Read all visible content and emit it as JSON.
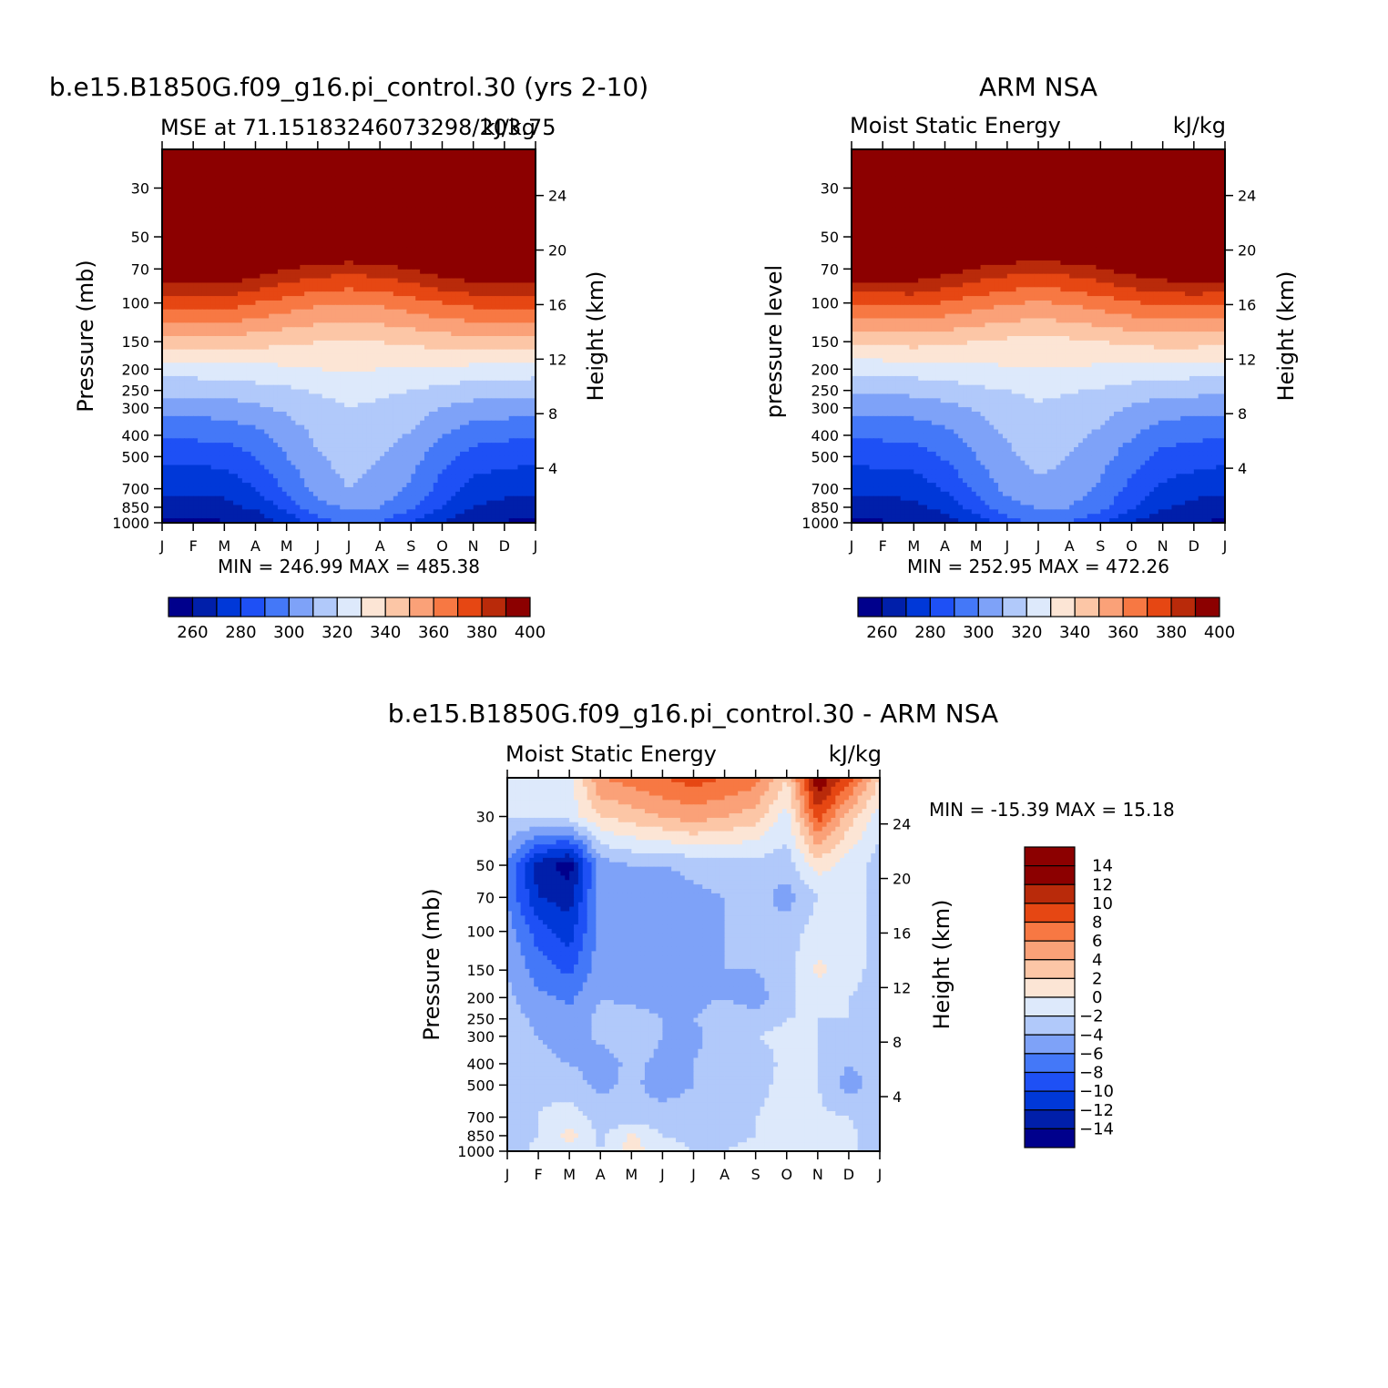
{
  "chart_data": [
    {
      "type": "heatmap",
      "title": "b.e15.B1850G.f09_g16.pi_control.30 (yrs 2-10)",
      "left_subtitle": "MSE at 71.15183246073298/203.75",
      "right_subtitle": "kJ/kg",
      "ylabel": "Pressure (mb)",
      "y2label": "Height (km)",
      "stats": "MIN = 246.99 MAX = 485.38",
      "months": [
        "J",
        "F",
        "M",
        "A",
        "M",
        "J",
        "J",
        "A",
        "S",
        "O",
        "N",
        "D",
        "J"
      ],
      "pressure_ticks": [
        "30",
        "50",
        "70",
        "100",
        "150",
        "200",
        "250",
        "300",
        "400",
        "500",
        "700",
        "850",
        "1000"
      ],
      "height_ticks": [
        "24",
        "20",
        "16",
        "12",
        "8",
        "4"
      ],
      "levels": [
        250,
        260,
        270,
        280,
        290,
        300,
        310,
        320,
        330,
        340,
        350,
        360,
        370,
        380,
        390,
        400
      ],
      "colorbar_labels": [
        "260",
        "280",
        "300",
        "320",
        "340",
        "360",
        "380",
        "400"
      ],
      "vmin": 246.99,
      "vmax": 485.38,
      "field": [
        {
          "p": 1000,
          "v": [
            258,
            258,
            259,
            262,
            272,
            285,
            292,
            290,
            280,
            270,
            262,
            259,
            258
          ]
        },
        {
          "p": 850,
          "v": [
            266,
            266,
            267,
            272,
            284,
            296,
            302,
            300,
            292,
            280,
            270,
            267,
            266
          ]
        },
        {
          "p": 700,
          "v": [
            272,
            272,
            273,
            280,
            292,
            304,
            310,
            306,
            298,
            286,
            276,
            273,
            272
          ]
        },
        {
          "p": 500,
          "v": [
            283,
            283,
            284,
            290,
            300,
            309,
            314,
            310,
            304,
            294,
            286,
            284,
            283
          ]
        },
        {
          "p": 400,
          "v": [
            292,
            292,
            293,
            297,
            304,
            312,
            316,
            314,
            309,
            300,
            294,
            292,
            292
          ]
        },
        {
          "p": 300,
          "v": [
            304,
            304,
            305,
            308,
            312,
            317,
            320,
            318,
            315,
            310,
            306,
            305,
            304
          ]
        },
        {
          "p": 250,
          "v": [
            313,
            313,
            314,
            316,
            318,
            321,
            323,
            322,
            320,
            317,
            315,
            314,
            313
          ]
        },
        {
          "p": 200,
          "v": [
            325,
            325,
            326,
            327,
            328,
            330,
            331,
            330,
            329,
            328,
            327,
            326,
            325
          ]
        },
        {
          "p": 150,
          "v": [
            345,
            345,
            346,
            344,
            342,
            340,
            339,
            340,
            342,
            344,
            346,
            346,
            345
          ]
        },
        {
          "p": 100,
          "v": [
            374,
            374,
            375,
            370,
            366,
            362,
            360,
            362,
            366,
            370,
            373,
            374,
            374
          ]
        },
        {
          "p": 70,
          "v": [
            402,
            402,
            402,
            396,
            390,
            386,
            384,
            386,
            390,
            396,
            400,
            402,
            402
          ]
        },
        {
          "p": 50,
          "v": [
            430,
            430,
            430,
            426,
            420,
            416,
            414,
            416,
            420,
            426,
            430,
            430,
            430
          ]
        },
        {
          "p": 30,
          "v": [
            470,
            470,
            470,
            466,
            460,
            456,
            455,
            456,
            460,
            466,
            470,
            470,
            470
          ]
        },
        {
          "p": 20,
          "v": [
            485,
            485,
            485,
            482,
            478,
            476,
            475,
            476,
            478,
            482,
            485,
            485,
            485
          ]
        }
      ]
    },
    {
      "type": "heatmap",
      "title": "ARM NSA",
      "left_subtitle": "Moist Static Energy",
      "right_subtitle": "kJ/kg",
      "ylabel": "pressure level",
      "y2label": "Height (km)",
      "stats": "MIN = 252.95 MAX = 472.26",
      "months": [
        "J",
        "F",
        "M",
        "A",
        "M",
        "J",
        "J",
        "A",
        "S",
        "O",
        "N",
        "D",
        "J"
      ],
      "pressure_ticks": [
        "30",
        "50",
        "70",
        "100",
        "150",
        "200",
        "250",
        "300",
        "400",
        "500",
        "700",
        "850",
        "1000"
      ],
      "height_ticks": [
        "24",
        "20",
        "16",
        "12",
        "8",
        "4"
      ],
      "levels": [
        250,
        260,
        270,
        280,
        290,
        300,
        310,
        320,
        330,
        340,
        350,
        360,
        370,
        380,
        390,
        400
      ],
      "colorbar_labels": [
        "260",
        "280",
        "300",
        "320",
        "340",
        "360",
        "380",
        "400"
      ],
      "vmin": 252.95,
      "vmax": 472.26,
      "field": [
        {
          "p": 1000,
          "v": [
            258,
            259,
            260,
            264,
            274,
            286,
            292,
            290,
            282,
            270,
            263,
            260,
            258
          ]
        },
        {
          "p": 850,
          "v": [
            265,
            266,
            267,
            273,
            284,
            296,
            301,
            300,
            293,
            281,
            271,
            267,
            265
          ]
        },
        {
          "p": 700,
          "v": [
            272,
            273,
            274,
            281,
            292,
            303,
            308,
            306,
            298,
            287,
            278,
            274,
            272
          ]
        },
        {
          "p": 500,
          "v": [
            283,
            284,
            285,
            291,
            300,
            308,
            313,
            310,
            304,
            295,
            287,
            285,
            283
          ]
        },
        {
          "p": 400,
          "v": [
            291,
            292,
            293,
            297,
            304,
            311,
            315,
            313,
            308,
            301,
            294,
            292,
            291
          ]
        },
        {
          "p": 300,
          "v": [
            303,
            303,
            304,
            307,
            311,
            316,
            319,
            317,
            314,
            309,
            305,
            304,
            303
          ]
        },
        {
          "p": 250,
          "v": [
            312,
            312,
            313,
            315,
            318,
            320,
            322,
            321,
            319,
            316,
            314,
            313,
            312
          ]
        },
        {
          "p": 200,
          "v": [
            324,
            324,
            325,
            326,
            327,
            329,
            330,
            329,
            328,
            327,
            326,
            325,
            324
          ]
        },
        {
          "p": 150,
          "v": [
            343,
            343,
            344,
            342,
            340,
            338,
            337,
            338,
            340,
            342,
            344,
            344,
            343
          ]
        },
        {
          "p": 100,
          "v": [
            372,
            372,
            373,
            369,
            365,
            361,
            359,
            361,
            365,
            369,
            372,
            373,
            372
          ]
        },
        {
          "p": 70,
          "v": [
            400,
            400,
            400,
            395,
            389,
            385,
            383,
            385,
            389,
            395,
            399,
            400,
            400
          ]
        },
        {
          "p": 50,
          "v": [
            428,
            428,
            428,
            424,
            418,
            414,
            412,
            414,
            418,
            424,
            428,
            428,
            428
          ]
        },
        {
          "p": 30,
          "v": [
            462,
            462,
            462,
            458,
            452,
            448,
            447,
            448,
            452,
            458,
            462,
            462,
            462
          ]
        },
        {
          "p": 20,
          "v": [
            472,
            472,
            472,
            470,
            466,
            464,
            463,
            464,
            466,
            470,
            472,
            472,
            472
          ]
        }
      ]
    },
    {
      "type": "heatmap",
      "title": "b.e15.B1850G.f09_g16.pi_control.30 - ARM NSA",
      "left_subtitle": "Moist Static Energy",
      "right_subtitle": "kJ/kg",
      "ylabel": "Pressure (mb)",
      "y2label": "Height (km)",
      "stats": "MIN = -15.39 MAX =  15.18",
      "months": [
        "J",
        "F",
        "M",
        "A",
        "M",
        "J",
        "J",
        "A",
        "S",
        "O",
        "N",
        "D",
        "J"
      ],
      "pressure_ticks": [
        "30",
        "50",
        "70",
        "100",
        "150",
        "200",
        "250",
        "300",
        "400",
        "500",
        "700",
        "850",
        "1000"
      ],
      "height_ticks": [
        "24",
        "20",
        "16",
        "12",
        "8",
        "4"
      ],
      "levels": [
        -16,
        -14,
        -12,
        -10,
        -8,
        -6,
        -4,
        -2,
        0,
        2,
        4,
        6,
        8,
        10,
        12,
        14,
        16
      ],
      "colorbar_labels": [
        "14",
        "12",
        "10",
        "8",
        "6",
        "4",
        "2",
        "0",
        "-2",
        "-4",
        "-6",
        "-8",
        "-10",
        "-12",
        "-14"
      ],
      "vmin": -15.39,
      "vmax": 15.18,
      "field": [
        {
          "p": 1000,
          "v": [
            -3,
            -1.5,
            -1,
            -2,
            1,
            -1,
            -2,
            -2,
            -1.5,
            -1,
            -1,
            -1.5,
            -3
          ]
        },
        {
          "p": 850,
          "v": [
            -3,
            -2,
            1,
            -2.5,
            0.5,
            -2,
            -2.5,
            -2.5,
            -2,
            -1,
            -1,
            -1.5,
            -3
          ]
        },
        {
          "p": 700,
          "v": [
            -3,
            -2,
            -1,
            -3,
            -3.5,
            -3,
            -3,
            -2.5,
            -2,
            -1.5,
            -1.5,
            -2,
            -3
          ]
        },
        {
          "p": 500,
          "v": [
            -3,
            -2.5,
            -3,
            -4.5,
            -3.5,
            -5,
            -4,
            -3,
            -2.5,
            -1.5,
            -2,
            -5,
            -3
          ]
        },
        {
          "p": 400,
          "v": [
            -3,
            -3.5,
            -4,
            -5,
            -3.5,
            -4.5,
            -4,
            -3,
            -3,
            -1.5,
            -2,
            -4,
            -3
          ]
        },
        {
          "p": 300,
          "v": [
            -3,
            -4,
            -5,
            -3.5,
            -3,
            -4,
            -4.5,
            -3,
            -2,
            -1.5,
            -2,
            -2.5,
            -3
          ]
        },
        {
          "p": 250,
          "v": [
            -3,
            -4.5,
            -5,
            -3.5,
            -3,
            -4,
            -4,
            -3,
            -3,
            -2,
            -2,
            -2,
            -3
          ]
        },
        {
          "p": 200,
          "v": [
            -3.5,
            -5.5,
            -6.5,
            -4,
            -4.5,
            -5,
            -4.5,
            -4,
            -5,
            -2.5,
            -1,
            -2,
            -3
          ]
        },
        {
          "p": 150,
          "v": [
            -4,
            -7,
            -8.5,
            -5,
            -5.5,
            -5,
            -4.5,
            -4,
            -4,
            -3,
            0.5,
            -1,
            -3
          ]
        },
        {
          "p": 100,
          "v": [
            -5,
            -9,
            -11,
            -5,
            -5,
            -5,
            -4.5,
            -4,
            -3,
            -3,
            -1,
            -1,
            -3
          ]
        },
        {
          "p": 70,
          "v": [
            -6,
            -12,
            -13,
            -5,
            -5,
            -5,
            -4.5,
            -4,
            -3,
            -5,
            -2,
            -1,
            -3
          ]
        },
        {
          "p": 50,
          "v": [
            -6,
            -13,
            -15,
            -5,
            -4,
            -4,
            -3.5,
            -3,
            -3,
            -3,
            1,
            -1,
            -3
          ]
        },
        {
          "p": 30,
          "v": [
            -2,
            -1.5,
            -1,
            2,
            3,
            4,
            5,
            4,
            3,
            -1,
            9,
            3,
            -1
          ]
        },
        {
          "p": 20,
          "v": [
            -1,
            -1,
            -1,
            6,
            7,
            8,
            9,
            8,
            7,
            2,
            14,
            9,
            2
          ]
        }
      ]
    }
  ]
}
